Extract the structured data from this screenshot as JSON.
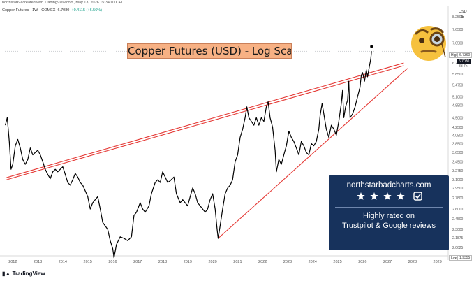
{
  "header": {
    "created_by": "northstar69 created with TradingView.com, May 13, 2026 15:34 UTC+1",
    "legend": "Copper Futures · 1W · COMEX",
    "last_value": "6.7080",
    "change": "+0.4115 (+6.56%)",
    "currency": "USD",
    "unit": "lb"
  },
  "title": "Copper Futures (USD) - Log Scale",
  "price_tags": {
    "high_label": "High",
    "high_value": "6.7360",
    "last_value": "6.7080",
    "time_left": "3d 7h",
    "low_label": "Low",
    "low_value": "1.9355"
  },
  "promo": {
    "url": "northstarbadcharts.com",
    "rating_stars": 4,
    "line1": "Highly rated on",
    "line2": "Trustpilot & Google reviews"
  },
  "branding": {
    "logo_text": "TradingView"
  },
  "colors": {
    "price_line": "#000000",
    "trendline": "#e53935",
    "title_bg": "#f7b184",
    "promo_bg": "#17325c"
  },
  "chart_data": {
    "type": "line",
    "scale": "log",
    "x_ticks": [
      "2012",
      "2013",
      "2014",
      "2015",
      "2016",
      "2017",
      "2018",
      "2019",
      "2020",
      "2021",
      "2022",
      "2023",
      "2024",
      "2025",
      "2026",
      "2027",
      "2028",
      "2029"
    ],
    "y_ticks": [
      "8.2500",
      "7.6500",
      "7.0500",
      "6.2500",
      "5.8500",
      "5.4750",
      "5.1000",
      "4.8500",
      "4.5000",
      "4.2500",
      "4.0500",
      "3.8500",
      "3.6500",
      "3.4500",
      "3.2750",
      "3.1000",
      "2.9500",
      "2.7800",
      "2.6000",
      "2.4500",
      "2.3000",
      "2.1875",
      "2.0625"
    ],
    "ylim": [
      1.93,
      8.6
    ],
    "xlim": [
      2011.6,
      2029.4
    ],
    "series": [
      {
        "values": [
          [
            2011.7,
            4.3
          ],
          [
            2011.78,
            4.5
          ],
          [
            2011.86,
            3.9
          ],
          [
            2011.93,
            3.3
          ],
          [
            2012.0,
            3.4
          ],
          [
            2012.1,
            3.8
          ],
          [
            2012.2,
            3.95
          ],
          [
            2012.3,
            3.75
          ],
          [
            2012.4,
            3.5
          ],
          [
            2012.5,
            3.4
          ],
          [
            2012.6,
            3.5
          ],
          [
            2012.7,
            3.75
          ],
          [
            2012.8,
            3.6
          ],
          [
            2012.9,
            3.65
          ],
          [
            2013.0,
            3.7
          ],
          [
            2013.1,
            3.6
          ],
          [
            2013.2,
            3.45
          ],
          [
            2013.3,
            3.3
          ],
          [
            2013.4,
            3.2
          ],
          [
            2013.5,
            3.12
          ],
          [
            2013.6,
            3.25
          ],
          [
            2013.7,
            3.3
          ],
          [
            2013.8,
            3.25
          ],
          [
            2013.9,
            3.3
          ],
          [
            2014.0,
            3.35
          ],
          [
            2014.1,
            3.2
          ],
          [
            2014.2,
            3.05
          ],
          [
            2014.3,
            3.0
          ],
          [
            2014.4,
            3.1
          ],
          [
            2014.5,
            3.22
          ],
          [
            2014.6,
            3.15
          ],
          [
            2014.7,
            3.05
          ],
          [
            2014.8,
            3.0
          ],
          [
            2014.9,
            2.9
          ],
          [
            2015.0,
            2.8
          ],
          [
            2015.1,
            2.6
          ],
          [
            2015.2,
            2.7
          ],
          [
            2015.3,
            2.75
          ],
          [
            2015.4,
            2.8
          ],
          [
            2015.5,
            2.6
          ],
          [
            2015.6,
            2.4
          ],
          [
            2015.7,
            2.35
          ],
          [
            2015.8,
            2.3
          ],
          [
            2015.9,
            2.15
          ],
          [
            2016.0,
            2.05
          ],
          [
            2016.05,
            1.94
          ],
          [
            2016.15,
            2.1
          ],
          [
            2016.3,
            2.2
          ],
          [
            2016.45,
            2.18
          ],
          [
            2016.6,
            2.15
          ],
          [
            2016.75,
            2.2
          ],
          [
            2016.85,
            2.5
          ],
          [
            2016.95,
            2.55
          ],
          [
            2017.1,
            2.7
          ],
          [
            2017.2,
            2.6
          ],
          [
            2017.3,
            2.55
          ],
          [
            2017.45,
            2.65
          ],
          [
            2017.55,
            2.85
          ],
          [
            2017.7,
            3.05
          ],
          [
            2017.8,
            3.1
          ],
          [
            2017.9,
            3.05
          ],
          [
            2018.0,
            3.25
          ],
          [
            2018.1,
            3.15
          ],
          [
            2018.2,
            3.05
          ],
          [
            2018.3,
            3.08
          ],
          [
            2018.45,
            3.15
          ],
          [
            2018.55,
            2.85
          ],
          [
            2018.7,
            2.7
          ],
          [
            2018.8,
            2.75
          ],
          [
            2018.9,
            2.7
          ],
          [
            2019.0,
            2.65
          ],
          [
            2019.1,
            2.8
          ],
          [
            2019.2,
            2.95
          ],
          [
            2019.3,
            2.85
          ],
          [
            2019.4,
            2.7
          ],
          [
            2019.5,
            2.65
          ],
          [
            2019.6,
            2.6
          ],
          [
            2019.7,
            2.55
          ],
          [
            2019.8,
            2.6
          ],
          [
            2019.9,
            2.75
          ],
          [
            2020.0,
            2.85
          ],
          [
            2020.1,
            2.6
          ],
          [
            2020.18,
            2.3
          ],
          [
            2020.22,
            2.18
          ],
          [
            2020.3,
            2.35
          ],
          [
            2020.4,
            2.6
          ],
          [
            2020.5,
            2.85
          ],
          [
            2020.6,
            2.95
          ],
          [
            2020.7,
            3.0
          ],
          [
            2020.8,
            3.1
          ],
          [
            2020.9,
            3.45
          ],
          [
            2021.0,
            3.6
          ],
          [
            2021.1,
            4.0
          ],
          [
            2021.2,
            4.2
          ],
          [
            2021.3,
            4.5
          ],
          [
            2021.37,
            4.8
          ],
          [
            2021.45,
            4.5
          ],
          [
            2021.55,
            4.4
          ],
          [
            2021.65,
            4.3
          ],
          [
            2021.75,
            4.5
          ],
          [
            2021.85,
            4.3
          ],
          [
            2021.95,
            4.5
          ],
          [
            2022.05,
            4.4
          ],
          [
            2022.15,
            4.8
          ],
          [
            2022.22,
            4.95
          ],
          [
            2022.3,
            4.5
          ],
          [
            2022.4,
            4.25
          ],
          [
            2022.5,
            3.7
          ],
          [
            2022.55,
            3.25
          ],
          [
            2022.65,
            3.5
          ],
          [
            2022.75,
            3.4
          ],
          [
            2022.85,
            3.6
          ],
          [
            2022.95,
            3.8
          ],
          [
            2023.05,
            4.15
          ],
          [
            2023.15,
            4.0
          ],
          [
            2023.25,
            3.9
          ],
          [
            2023.35,
            3.75
          ],
          [
            2023.45,
            3.6
          ],
          [
            2023.55,
            3.9
          ],
          [
            2023.65,
            3.8
          ],
          [
            2023.75,
            3.65
          ],
          [
            2023.85,
            3.6
          ],
          [
            2023.95,
            3.85
          ],
          [
            2024.05,
            3.8
          ],
          [
            2024.15,
            3.9
          ],
          [
            2024.25,
            4.2
          ],
          [
            2024.3,
            4.55
          ],
          [
            2024.38,
            4.9
          ],
          [
            2024.45,
            4.6
          ],
          [
            2024.55,
            4.2
          ],
          [
            2024.65,
            4.0
          ],
          [
            2024.75,
            4.3
          ],
          [
            2024.85,
            4.2
          ],
          [
            2024.95,
            4.05
          ],
          [
            2025.05,
            4.4
          ],
          [
            2025.15,
            4.9
          ],
          [
            2025.2,
            5.3
          ],
          [
            2025.25,
            4.5
          ],
          [
            2025.32,
            4.8
          ],
          [
            2025.4,
            5.0
          ],
          [
            2025.45,
            5.6
          ],
          [
            2025.5,
            4.5
          ],
          [
            2025.6,
            4.6
          ],
          [
            2025.7,
            4.8
          ],
          [
            2025.8,
            5.1
          ],
          [
            2025.9,
            5.4
          ],
          [
            2025.95,
            5.8
          ],
          [
            2026.0,
            5.9
          ],
          [
            2026.08,
            5.6
          ],
          [
            2026.15,
            6.0
          ],
          [
            2026.2,
            5.75
          ],
          [
            2026.28,
            6.15
          ],
          [
            2026.33,
            6.4
          ],
          [
            2026.36,
            6.708
          ]
        ]
      },
      {
        "values": [
          [
            2011.75,
            3.1
          ],
          [
            2027.65,
            6.15
          ]
        ]
      },
      {
        "values": [
          [
            2011.75,
            3.14
          ],
          [
            2027.65,
            6.25
          ]
        ]
      },
      {
        "values": [
          [
            2020.22,
            2.18
          ],
          [
            2027.8,
            6.05
          ]
        ]
      }
    ],
    "points": [
      {
        "x": 2026.36,
        "y": 6.9
      }
    ],
    "grid": false,
    "legend_position": "top-left"
  }
}
